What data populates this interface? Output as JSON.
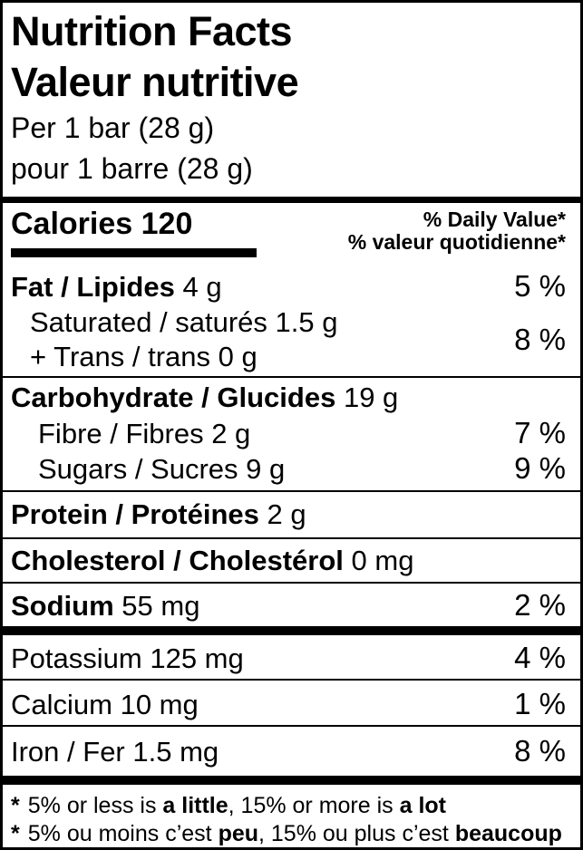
{
  "header": {
    "title_en": "Nutrition Facts",
    "title_fr": "Valeur nutritive",
    "serving_en": "Per 1 bar (28 g)",
    "serving_fr": "pour 1 barre (28 g)"
  },
  "calories": {
    "label": "Calories",
    "value": "120"
  },
  "daily_value": {
    "header_en": "% Daily Value*",
    "header_fr": "% valeur quotidienne*"
  },
  "nutrients": {
    "fat": {
      "label": "Fat / Lipides",
      "amount": "4 g",
      "dv": "5 %"
    },
    "saturated_trans": {
      "line1": "Saturated / saturés 1.5 g",
      "line2": "+ Trans / trans 0 g",
      "dv": "8 %"
    },
    "carbohydrate": {
      "label": "Carbohydrate / Glucides",
      "amount": "19 g"
    },
    "fibre": {
      "label": "Fibre / Fibres 2 g",
      "dv": "7 %"
    },
    "sugars": {
      "label": "Sugars / Sucres 9 g",
      "dv": "9 %"
    },
    "protein": {
      "label": "Protein / Protéines",
      "amount": "2 g"
    },
    "cholesterol": {
      "label": "Cholesterol / Cholestérol",
      "amount": "0 mg"
    },
    "sodium": {
      "label": "Sodium",
      "amount": "55 mg",
      "dv": "2 %"
    },
    "potassium": {
      "label": "Potassium 125 mg",
      "dv": "4 %"
    },
    "calcium": {
      "label": "Calcium 10 mg",
      "dv": "1 %"
    },
    "iron": {
      "label": "Iron / Fer 1.5 mg",
      "dv": "8 %"
    }
  },
  "footnotes": {
    "en": {
      "marker": "*",
      "part1": "5% or less is ",
      "bold1": "a little",
      "part2": ", 15% or more is ",
      "bold2": "a lot"
    },
    "fr": {
      "marker": "*",
      "part1": "5% ou moins c’est ",
      "bold1": "peu",
      "part2": ", 15% ou plus c’est ",
      "bold2": "beaucoup"
    }
  },
  "colors": {
    "foreground": "#000000",
    "background": "#ffffff"
  }
}
